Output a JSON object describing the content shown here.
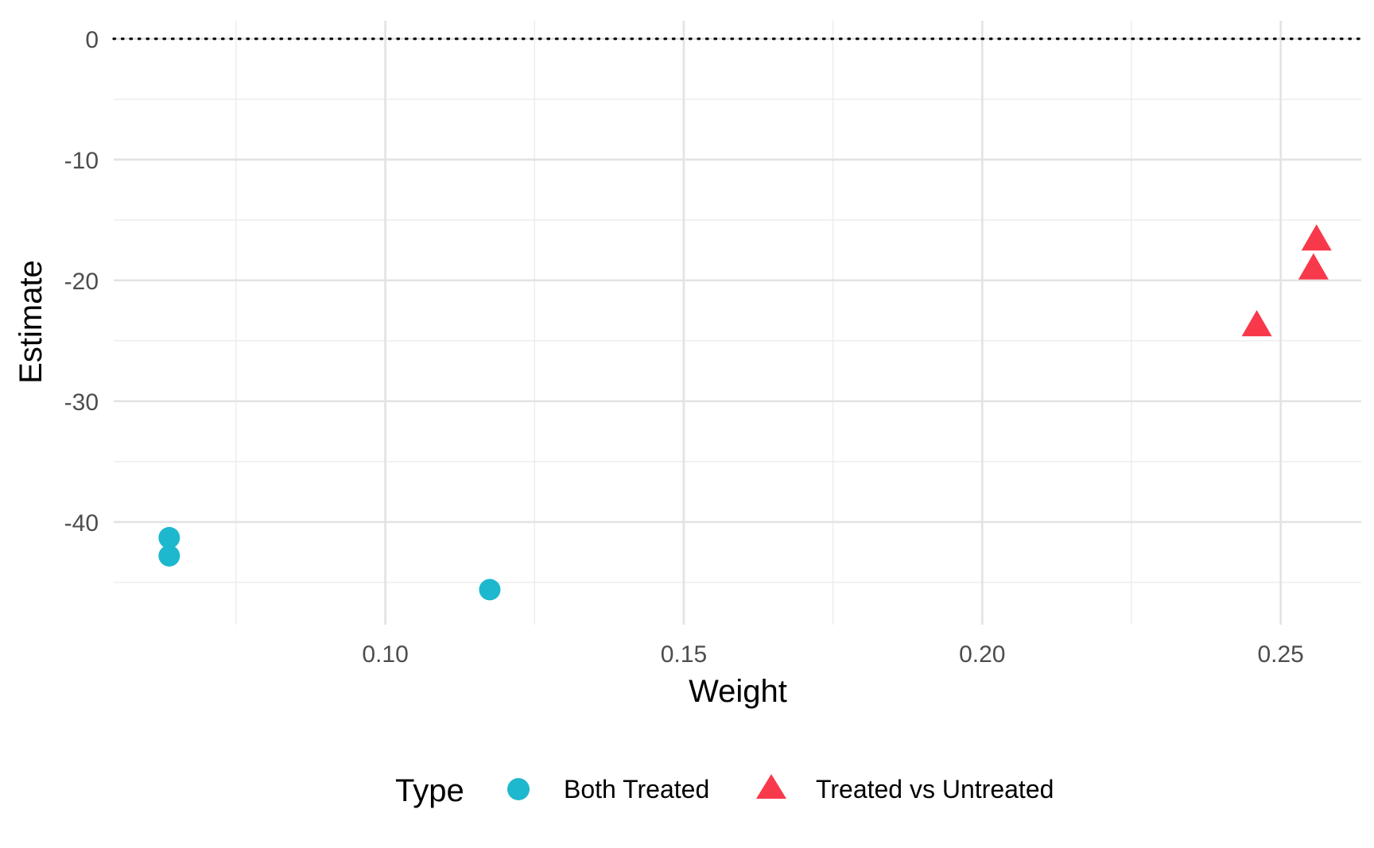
{
  "chart_data": {
    "type": "scatter",
    "title": "",
    "xlabel": "Weight",
    "ylabel": "Estimate",
    "xlim": [
      0.0545,
      0.2635
    ],
    "ylim": [
      -48.5,
      1.5
    ],
    "x_ticks": [
      0.1,
      0.15,
      0.2,
      0.25
    ],
    "x_tick_labels": [
      "0.10",
      "0.15",
      "0.20",
      "0.25"
    ],
    "x_minor_ticks": [
      0.075,
      0.125,
      0.175,
      0.225
    ],
    "y_ticks": [
      0,
      -10,
      -20,
      -30,
      -40
    ],
    "y_tick_labels": [
      "0",
      "-10",
      "-20",
      "-30",
      "-40"
    ],
    "y_minor_ticks": [
      -5,
      -15,
      -25,
      -35,
      -45
    ],
    "grid": true,
    "reference_line": {
      "y": 0,
      "style": "dotted",
      "color": "#000000"
    },
    "legend": {
      "title": "Type",
      "position": "bottom",
      "entries": [
        {
          "label": "Both Treated",
          "shape": "circle",
          "color": "#1DB8CE"
        },
        {
          "label": "Treated vs Untreated",
          "shape": "triangle",
          "color": "#F8394B"
        }
      ]
    },
    "series": [
      {
        "name": "Both Treated",
        "shape": "circle",
        "color": "#1DB8CE",
        "points": [
          {
            "x": 0.0638,
            "y": -41.3
          },
          {
            "x": 0.0638,
            "y": -42.8
          },
          {
            "x": 0.1175,
            "y": -45.6
          }
        ]
      },
      {
        "name": "Treated vs Untreated",
        "shape": "triangle",
        "color": "#F8394B",
        "points": [
          {
            "x": 0.246,
            "y": -23.9
          },
          {
            "x": 0.2555,
            "y": -19.2
          },
          {
            "x": 0.256,
            "y": -16.8
          }
        ]
      }
    ]
  }
}
